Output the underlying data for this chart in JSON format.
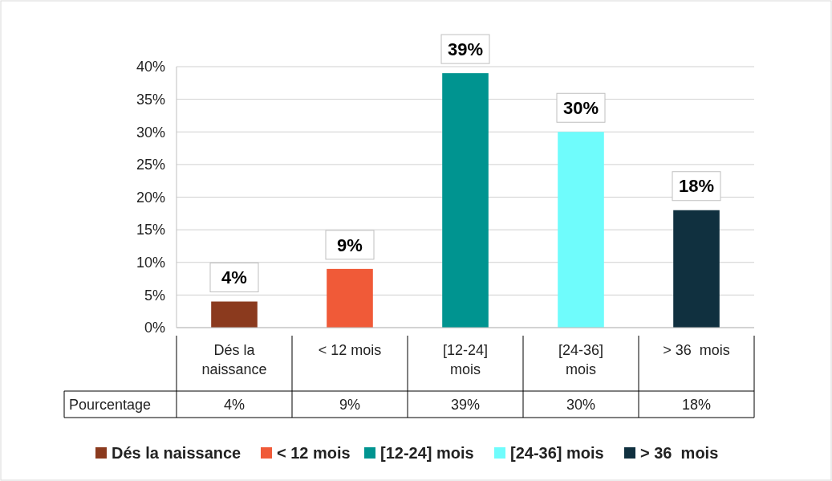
{
  "chart_data": {
    "type": "bar",
    "categories": [
      "Dés la naissance",
      "< 12 mois",
      "[12-24] mois",
      "[24-36] mois",
      "> 36  mois"
    ],
    "series": [
      {
        "name": "Pourcentage",
        "values": [
          4,
          9,
          39,
          30,
          18
        ],
        "value_labels": [
          "4%",
          "9%",
          "39%",
          "30%",
          "18%"
        ],
        "colors": [
          "#8b3a1e",
          "#f05a38",
          "#009490",
          "#6ffcfc",
          "#10303f"
        ]
      }
    ],
    "ylim": [
      0,
      40
    ],
    "yticks": [
      {
        "value": 0,
        "label": "0%"
      },
      {
        "value": 5,
        "label": "5%"
      },
      {
        "value": 10,
        "label": "10%"
      },
      {
        "value": 15,
        "label": "15%"
      },
      {
        "value": 20,
        "label": "20%"
      },
      {
        "value": 25,
        "label": "25%"
      },
      {
        "value": 30,
        "label": "30%"
      },
      {
        "value": 35,
        "label": "35%"
      },
      {
        "value": 40,
        "label": "40%"
      }
    ],
    "grid": "y",
    "legend": "bottom"
  }
}
